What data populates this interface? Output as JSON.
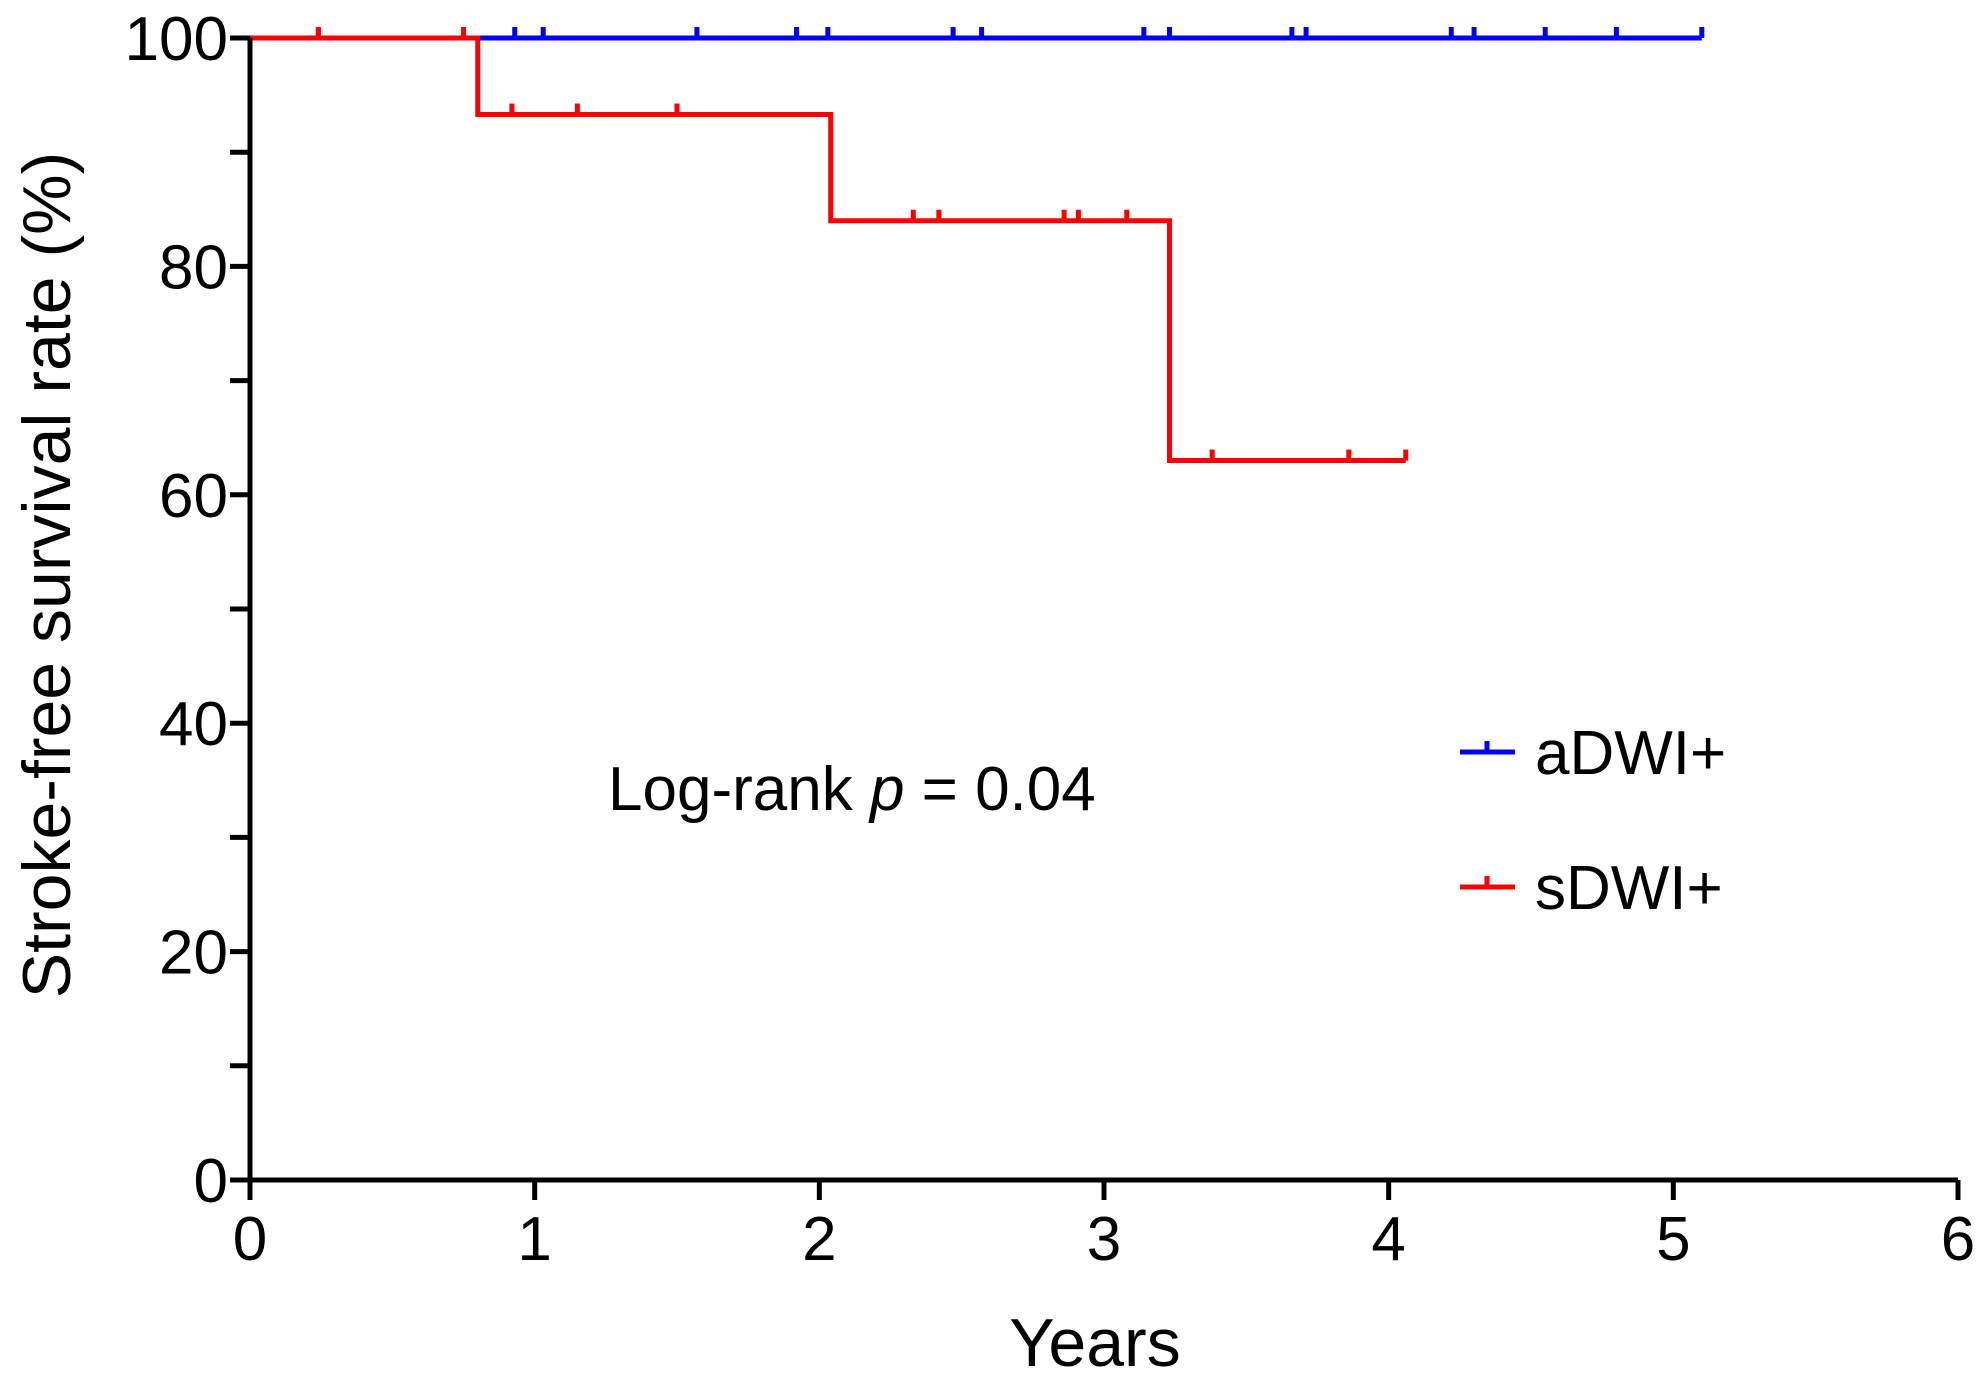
{
  "chart_data": {
    "type": "line",
    "subtype": "kaplan-meier step",
    "xlabel": "Years",
    "ylabel": "Stroke-free survival rate (%)",
    "xlim": [
      0,
      6
    ],
    "ylim": [
      0,
      100
    ],
    "xticks": [
      0,
      1,
      2,
      3,
      4,
      5,
      6
    ],
    "yticks_labeled": [
      0,
      20,
      40,
      60,
      80,
      100
    ],
    "yticks_minor": [
      10,
      30,
      50,
      70,
      90
    ],
    "grid": false,
    "legend_position": "right",
    "annotation": {
      "prefix": "Log-rank ",
      "italic": "p",
      "suffix": " = 0.04"
    },
    "series": [
      {
        "name": "aDWI+",
        "color": "#0000ff",
        "steps": [
          [
            0,
            100
          ],
          [
            5.1,
            100
          ]
        ],
        "censored": [
          0.24,
          0.93,
          1.03,
          1.57,
          1.92,
          2.03,
          2.47,
          2.57,
          3.14,
          3.23,
          3.66,
          3.71,
          4.22,
          4.3,
          4.55,
          4.8,
          5.1
        ]
      },
      {
        "name": "sDWI+",
        "color": "#ff0000",
        "steps": [
          [
            0,
            100
          ],
          [
            0.8,
            93.3
          ],
          [
            2.04,
            84
          ],
          [
            3.23,
            63
          ],
          [
            4.06,
            63
          ]
        ],
        "censored": [
          0.24,
          0.75,
          0.92,
          1.15,
          1.5,
          2.33,
          2.42,
          2.86,
          2.91,
          3.08,
          3.38,
          3.86,
          4.06
        ]
      }
    ]
  }
}
